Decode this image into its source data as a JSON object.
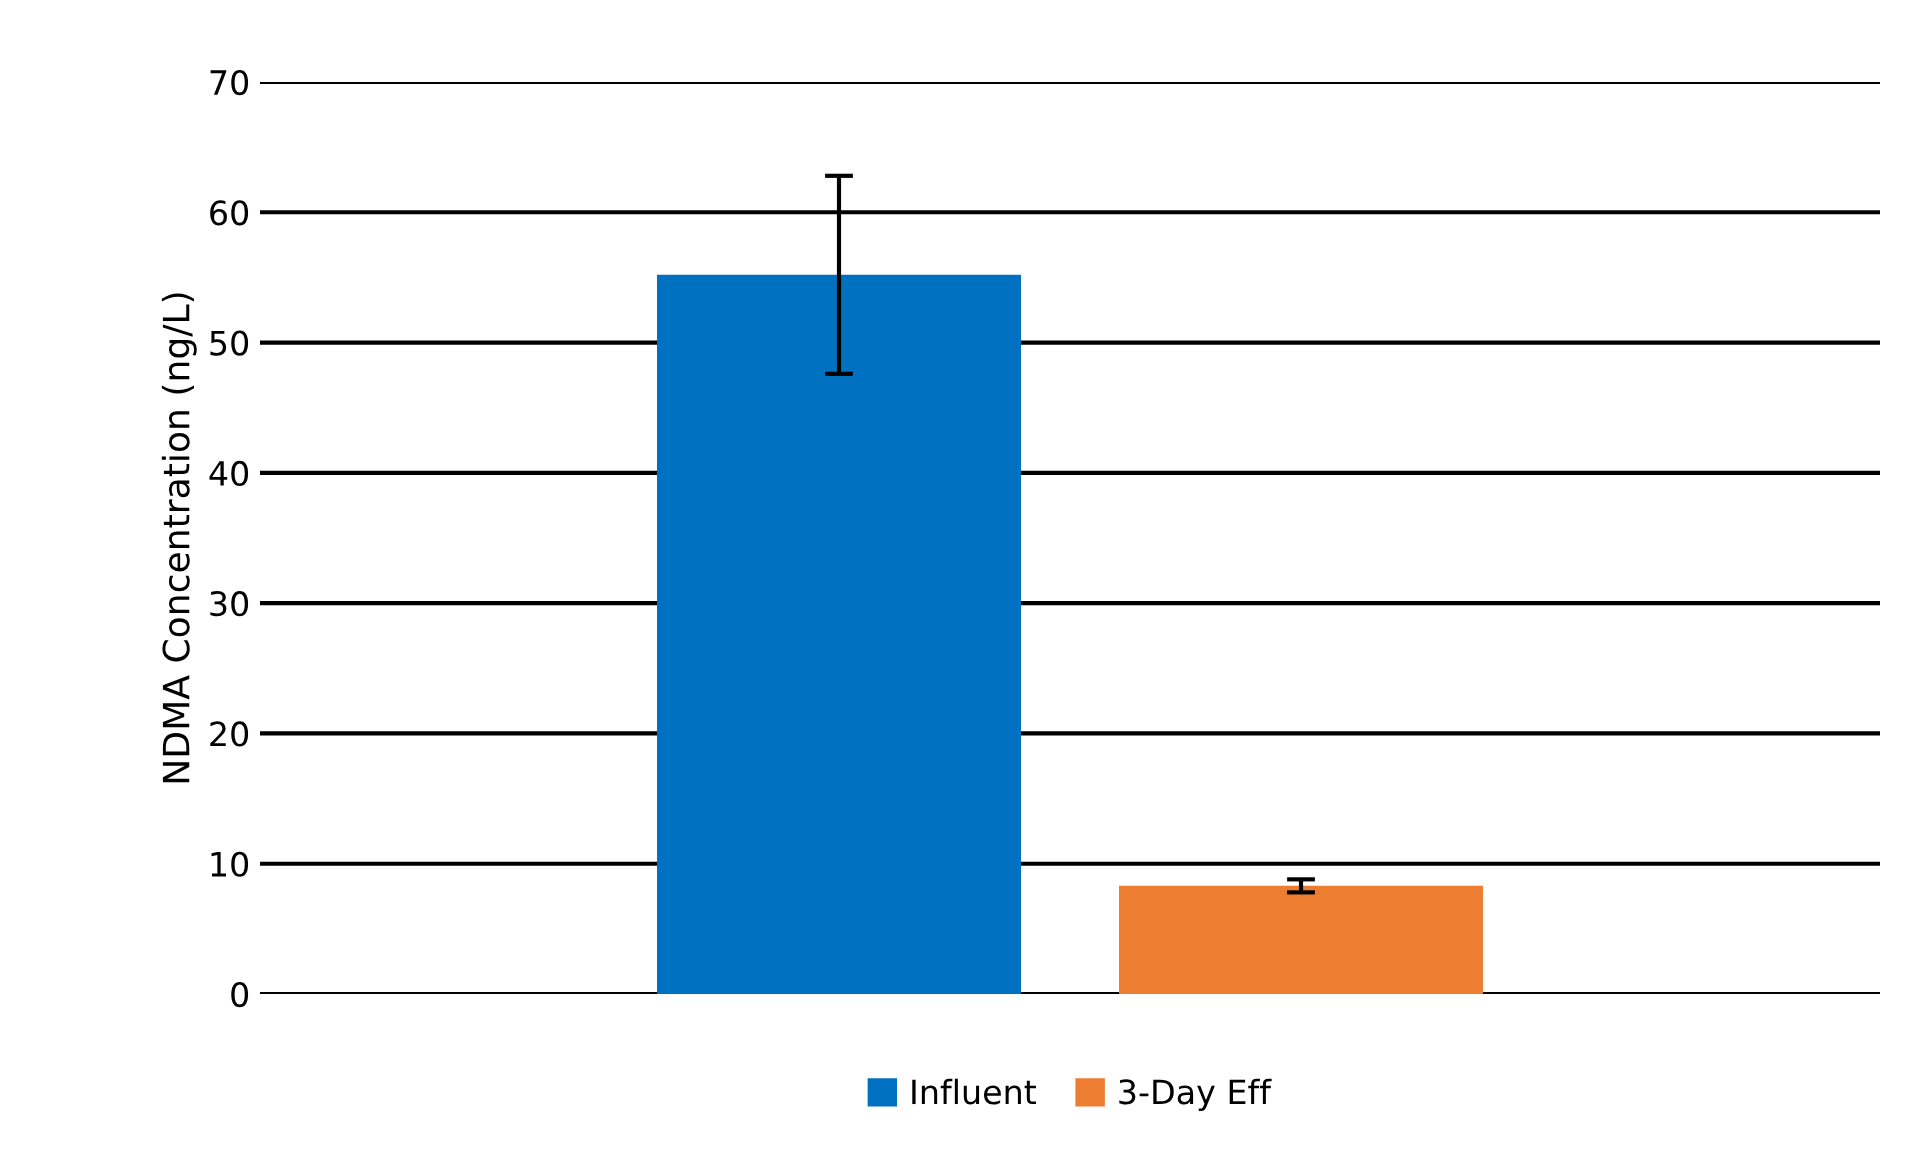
{
  "chart_data": {
    "type": "bar",
    "ylabel": "NDMA Concentration (ng/L)",
    "categories": [
      null
    ],
    "series": [
      {
        "name": "Influent",
        "color": "#0070c0",
        "values": [
          55.2
        ],
        "errors": [
          [
            47.6,
            62.8
          ]
        ]
      },
      {
        "name": "3-Day Eff",
        "color": "#ed7d31",
        "values": [
          8.3
        ],
        "errors": [
          [
            7.8,
            8.8
          ]
        ]
      }
    ],
    "ylim": [
      0,
      70
    ],
    "yticks": [
      0,
      10,
      20,
      30,
      40,
      50,
      60,
      70
    ],
    "grid": "y",
    "legend": "bottom"
  }
}
